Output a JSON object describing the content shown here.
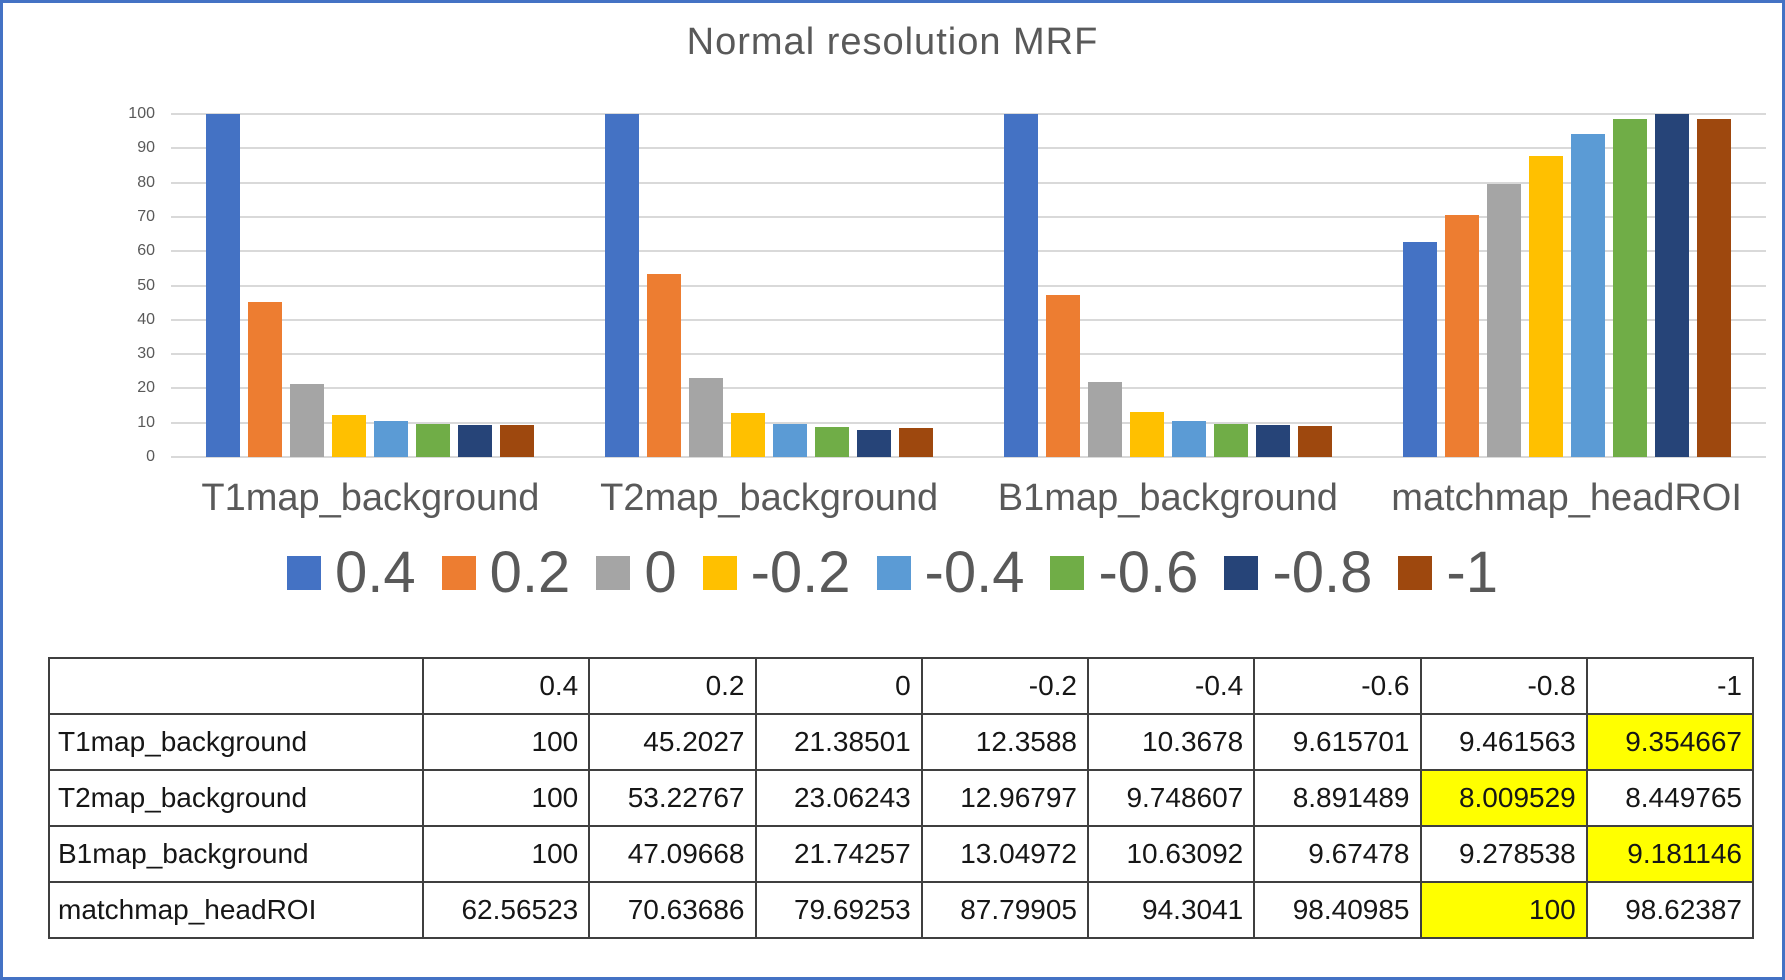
{
  "frame": {
    "border_color": "#4472C4",
    "background": "#FFFFFF"
  },
  "chart_data": {
    "type": "bar",
    "title": "Normal resolution MRF",
    "title_color": "#595959",
    "categories": [
      "T1map_background",
      "T2map_background",
      "B1map_background",
      "matchmap_headROI"
    ],
    "series": [
      {
        "name": "0.4",
        "color": "#4472C4",
        "values": [
          100,
          100,
          100,
          62.56523
        ]
      },
      {
        "name": "0.2",
        "color": "#ED7D31",
        "values": [
          45.2027,
          53.22767,
          47.09668,
          70.63686
        ]
      },
      {
        "name": "0",
        "color": "#A5A5A5",
        "values": [
          21.38501,
          23.06243,
          21.74257,
          79.69253
        ]
      },
      {
        "name": "-0.2",
        "color": "#FFC000",
        "values": [
          12.3588,
          12.96797,
          13.04972,
          87.79905
        ]
      },
      {
        "name": "-0.4",
        "color": "#5B9BD5",
        "values": [
          10.3678,
          9.748607,
          10.63092,
          94.3041
        ]
      },
      {
        "name": "-0.6",
        "color": "#70AD47",
        "values": [
          9.615701,
          8.891489,
          9.67478,
          98.40985
        ]
      },
      {
        "name": "-0.8",
        "color": "#264478",
        "values": [
          9.461563,
          8.009529,
          9.278538,
          100
        ]
      },
      {
        "name": "-1",
        "color": "#9E480E",
        "values": [
          9.354667,
          8.449765,
          9.181146,
          98.62387
        ]
      }
    ],
    "ylim": [
      0,
      100
    ],
    "yticks": [
      0,
      10,
      20,
      30,
      40,
      50,
      60,
      70,
      80,
      90,
      100
    ],
    "grid": true,
    "gridline_color": "#D9D9D9",
    "axis_text_color": "#595959",
    "legend_position": "bottom"
  },
  "table": {
    "highlight_color": "#FFFF00",
    "columns": [
      "",
      "0.4",
      "0.2",
      "0",
      "-0.2",
      "-0.4",
      "-0.6",
      "-0.8",
      "-1"
    ],
    "rows": [
      {
        "label": "T1map_background",
        "values": [
          "100",
          "45.2027",
          "21.38501",
          "12.3588",
          "10.3678",
          "9.615701",
          "9.461563",
          "9.354667"
        ],
        "highlight": [
          7
        ]
      },
      {
        "label": "T2map_background",
        "values": [
          "100",
          "53.22767",
          "23.06243",
          "12.96797",
          "9.748607",
          "8.891489",
          "8.009529",
          "8.449765"
        ],
        "highlight": [
          6
        ]
      },
      {
        "label": "B1map_background",
        "values": [
          "100",
          "47.09668",
          "21.74257",
          "13.04972",
          "10.63092",
          "9.67478",
          "9.278538",
          "9.181146"
        ],
        "highlight": [
          7
        ]
      },
      {
        "label": "matchmap_headROI",
        "values": [
          "62.56523",
          "70.63686",
          "79.69253",
          "87.79905",
          "94.3041",
          "98.40985",
          "100",
          "98.62387"
        ],
        "highlight": [
          6
        ]
      }
    ]
  }
}
